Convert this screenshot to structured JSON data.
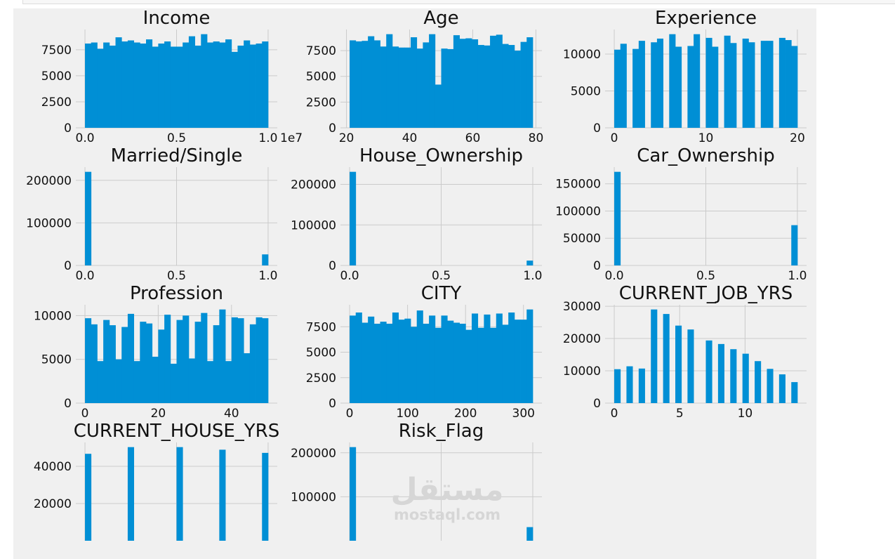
{
  "style": {
    "bar_color": "#008fd5",
    "background": "#f0f0f0",
    "grid_color": "#cbcbcb"
  },
  "watermark": {
    "arabic": "مستقل",
    "latin": "mostaql.com"
  },
  "chart_data": [
    {
      "type": "bar",
      "title": "Income",
      "range": [
        0,
        10000000
      ],
      "bins": 30,
      "offset_text": "1e7",
      "xticks": [
        0,
        5000000,
        10000000
      ],
      "xtick_labels": [
        "0.0",
        "0.5",
        "1.0"
      ],
      "yticks": [
        0,
        2500,
        5000,
        7500
      ],
      "counts": [
        8100,
        8200,
        7600,
        8200,
        7900,
        8700,
        8300,
        8400,
        8200,
        8100,
        8500,
        7800,
        8100,
        8300,
        7800,
        7800,
        8200,
        8800,
        7900,
        9000,
        8200,
        8300,
        8200,
        8500,
        7300,
        7900,
        8400,
        8000,
        8100,
        8300
      ]
    },
    {
      "type": "bar",
      "title": "Age",
      "range": [
        21,
        79
      ],
      "bins": 30,
      "xticks": [
        20,
        40,
        60,
        80
      ],
      "xtick_labels": [
        "20",
        "40",
        "60",
        "80"
      ],
      "yticks": [
        0,
        2500,
        5000,
        7500
      ],
      "counts": [
        8500,
        8400,
        8450,
        8900,
        8500,
        7900,
        9100,
        7900,
        7800,
        7800,
        8800,
        7700,
        8300,
        9100,
        4200,
        7700,
        7650,
        9000,
        8650,
        8700,
        8600,
        8050,
        8000,
        8950,
        9050,
        8150,
        8050,
        7500,
        8350,
        8800
      ]
    },
    {
      "type": "bar",
      "title": "Experience",
      "range": [
        0,
        20
      ],
      "bins": 30,
      "xticks": [
        0,
        10,
        20
      ],
      "xtick_labels": [
        "0",
        "10",
        "20"
      ],
      "yticks": [
        0,
        5000,
        10000
      ],
      "counts": [
        10600,
        11400,
        0,
        10700,
        11800,
        0,
        11600,
        12100,
        0,
        12700,
        11000,
        0,
        11100,
        12700,
        0,
        12200,
        11000,
        0,
        12500,
        11500,
        0,
        12100,
        11600,
        0,
        11800,
        11800,
        0,
        12200,
        11900,
        11100
      ]
    },
    {
      "type": "bar",
      "title": "Married/Single",
      "range": [
        0,
        1
      ],
      "bins": 30,
      "xticks": [
        0,
        0.5,
        1
      ],
      "xtick_labels": [
        "0.0",
        "0.5",
        "1.0"
      ],
      "yticks": [
        0,
        100000,
        200000
      ],
      "counts": [
        220000,
        0,
        0,
        0,
        0,
        0,
        0,
        0,
        0,
        0,
        0,
        0,
        0,
        0,
        0,
        0,
        0,
        0,
        0,
        0,
        0,
        0,
        0,
        0,
        0,
        0,
        0,
        0,
        0,
        26000
      ]
    },
    {
      "type": "bar",
      "title": "House_Ownership",
      "range": [
        0,
        1
      ],
      "bins": 30,
      "xticks": [
        0,
        0.5,
        1
      ],
      "xtick_labels": [
        "0.0",
        "0.5",
        "1.0"
      ],
      "yticks": [
        0,
        100000,
        200000
      ],
      "counts": [
        231000,
        0,
        0,
        0,
        0,
        0,
        0,
        0,
        0,
        0,
        0,
        0,
        0,
        0,
        0,
        0,
        0,
        0,
        0,
        0,
        0,
        0,
        0,
        0,
        0,
        0,
        0,
        0,
        0,
        12000
      ]
    },
    {
      "type": "bar",
      "title": "Car_Ownership",
      "range": [
        0,
        1
      ],
      "bins": 30,
      "xticks": [
        0,
        0.5,
        1
      ],
      "xtick_labels": [
        "0.0",
        "0.5",
        "1.0"
      ],
      "yticks": [
        0,
        50000,
        100000,
        150000
      ],
      "counts": [
        172000,
        0,
        0,
        0,
        0,
        0,
        0,
        0,
        0,
        0,
        0,
        0,
        0,
        0,
        0,
        0,
        0,
        0,
        0,
        0,
        0,
        0,
        0,
        0,
        0,
        0,
        0,
        0,
        0,
        74000
      ]
    },
    {
      "type": "bar",
      "title": "Profession",
      "range": [
        0,
        50
      ],
      "bins": 30,
      "xticks": [
        0,
        20,
        40
      ],
      "xtick_labels": [
        "0",
        "20",
        "40"
      ],
      "yticks": [
        0,
        5000,
        10000
      ],
      "counts": [
        9700,
        9000,
        4800,
        9500,
        8900,
        5000,
        8700,
        10200,
        4800,
        9300,
        9100,
        5300,
        8400,
        10100,
        4500,
        9500,
        10000,
        5100,
        9300,
        10300,
        4800,
        8900,
        10700,
        4800,
        9800,
        9700,
        5700,
        9000,
        9800,
        9700
      ]
    },
    {
      "type": "bar",
      "title": "CITY",
      "range": [
        0,
        316
      ],
      "bins": 30,
      "xticks": [
        0,
        100,
        200,
        300
      ],
      "xtick_labels": [
        "0",
        "100",
        "200",
        "300"
      ],
      "yticks": [
        0,
        2500,
        5000,
        7500
      ],
      "counts": [
        8600,
        8900,
        7900,
        8500,
        7800,
        8000,
        7800,
        8900,
        8200,
        8300,
        7500,
        9100,
        7800,
        8600,
        7400,
        8600,
        8100,
        7900,
        7800,
        7200,
        8800,
        7400,
        8700,
        7400,
        8800,
        7700,
        8900,
        8200,
        8200,
        9200
      ]
    },
    {
      "type": "bar",
      "title": "CURRENT_JOB_YRS",
      "range": [
        0,
        14
      ],
      "bins": 30,
      "xticks": [
        0,
        5,
        10
      ],
      "xtick_labels": [
        "0",
        "5",
        "10"
      ],
      "yticks": [
        0,
        10000,
        20000,
        30000
      ],
      "counts": [
        10500,
        0,
        11400,
        0,
        10700,
        0,
        29000,
        0,
        27600,
        0,
        24000,
        0,
        22800,
        0,
        0,
        19400,
        0,
        18300,
        0,
        16700,
        0,
        15300,
        0,
        13000,
        0,
        10600,
        0,
        8900,
        0,
        6500
      ]
    },
    {
      "type": "bar",
      "title": "CURRENT_HOUSE_YRS",
      "range": [
        10,
        14
      ],
      "bins": 30,
      "xticks": [
        10,
        12,
        14
      ],
      "xtick_labels": [
        "",
        "",
        ""
      ],
      "yticks": [
        20000,
        40000
      ],
      "ytick_labels": [
        "20000",
        "40000"
      ],
      "counts": [
        46700,
        0,
        0,
        0,
        0,
        0,
        0,
        50300,
        0,
        0,
        0,
        0,
        0,
        0,
        0,
        50300,
        0,
        0,
        0,
        0,
        0,
        0,
        48900,
        0,
        0,
        0,
        0,
        0,
        0,
        47200
      ]
    },
    {
      "type": "bar",
      "title": "Risk_Flag",
      "range": [
        0,
        1
      ],
      "bins": 30,
      "xticks": [
        0,
        0.5,
        1
      ],
      "xtick_labels": [
        "",
        "",
        ""
      ],
      "yticks": [
        100000,
        200000
      ],
      "ytick_labels": [
        "100000",
        "200000"
      ],
      "counts": [
        213000,
        0,
        0,
        0,
        0,
        0,
        0,
        0,
        0,
        0,
        0,
        0,
        0,
        0,
        0,
        0,
        0,
        0,
        0,
        0,
        0,
        0,
        0,
        0,
        0,
        0,
        0,
        0,
        0,
        31000
      ]
    }
  ]
}
